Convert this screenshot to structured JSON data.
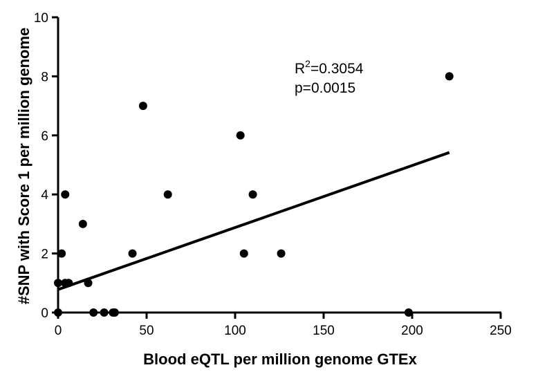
{
  "chart_data": {
    "type": "scatter",
    "title": "",
    "xlabel": "Blood eQTL per million genome GTEx",
    "ylabel": "#SNP with Score 1 per million genome",
    "xlim": [
      0,
      250
    ],
    "ylim": [
      0,
      10
    ],
    "xticks": [
      0,
      50,
      100,
      150,
      200,
      250
    ],
    "yticks": [
      0,
      2,
      4,
      6,
      8,
      10
    ],
    "points": [
      {
        "x": 0,
        "y": 0
      },
      {
        "x": 0,
        "y": 1
      },
      {
        "x": 2,
        "y": 2
      },
      {
        "x": 4,
        "y": 4
      },
      {
        "x": 4,
        "y": 1
      },
      {
        "x": 6,
        "y": 1
      },
      {
        "x": 14,
        "y": 3
      },
      {
        "x": 17,
        "y": 1
      },
      {
        "x": 20,
        "y": 0
      },
      {
        "x": 26,
        "y": 0
      },
      {
        "x": 31,
        "y": 0
      },
      {
        "x": 32,
        "y": 0
      },
      {
        "x": 42,
        "y": 2
      },
      {
        "x": 48,
        "y": 7
      },
      {
        "x": 62,
        "y": 4
      },
      {
        "x": 103,
        "y": 6
      },
      {
        "x": 105,
        "y": 2
      },
      {
        "x": 110,
        "y": 4
      },
      {
        "x": 126,
        "y": 2
      },
      {
        "x": 198,
        "y": 0
      },
      {
        "x": 221,
        "y": 8
      }
    ],
    "regression_line": {
      "x": [
        0,
        221
      ],
      "y": [
        0.78,
        5.42
      ]
    },
    "annotation": {
      "r2_prefix": "R",
      "r2_sup": "2",
      "r2_value": "=0.3054",
      "p": "p=0.0015"
    }
  }
}
